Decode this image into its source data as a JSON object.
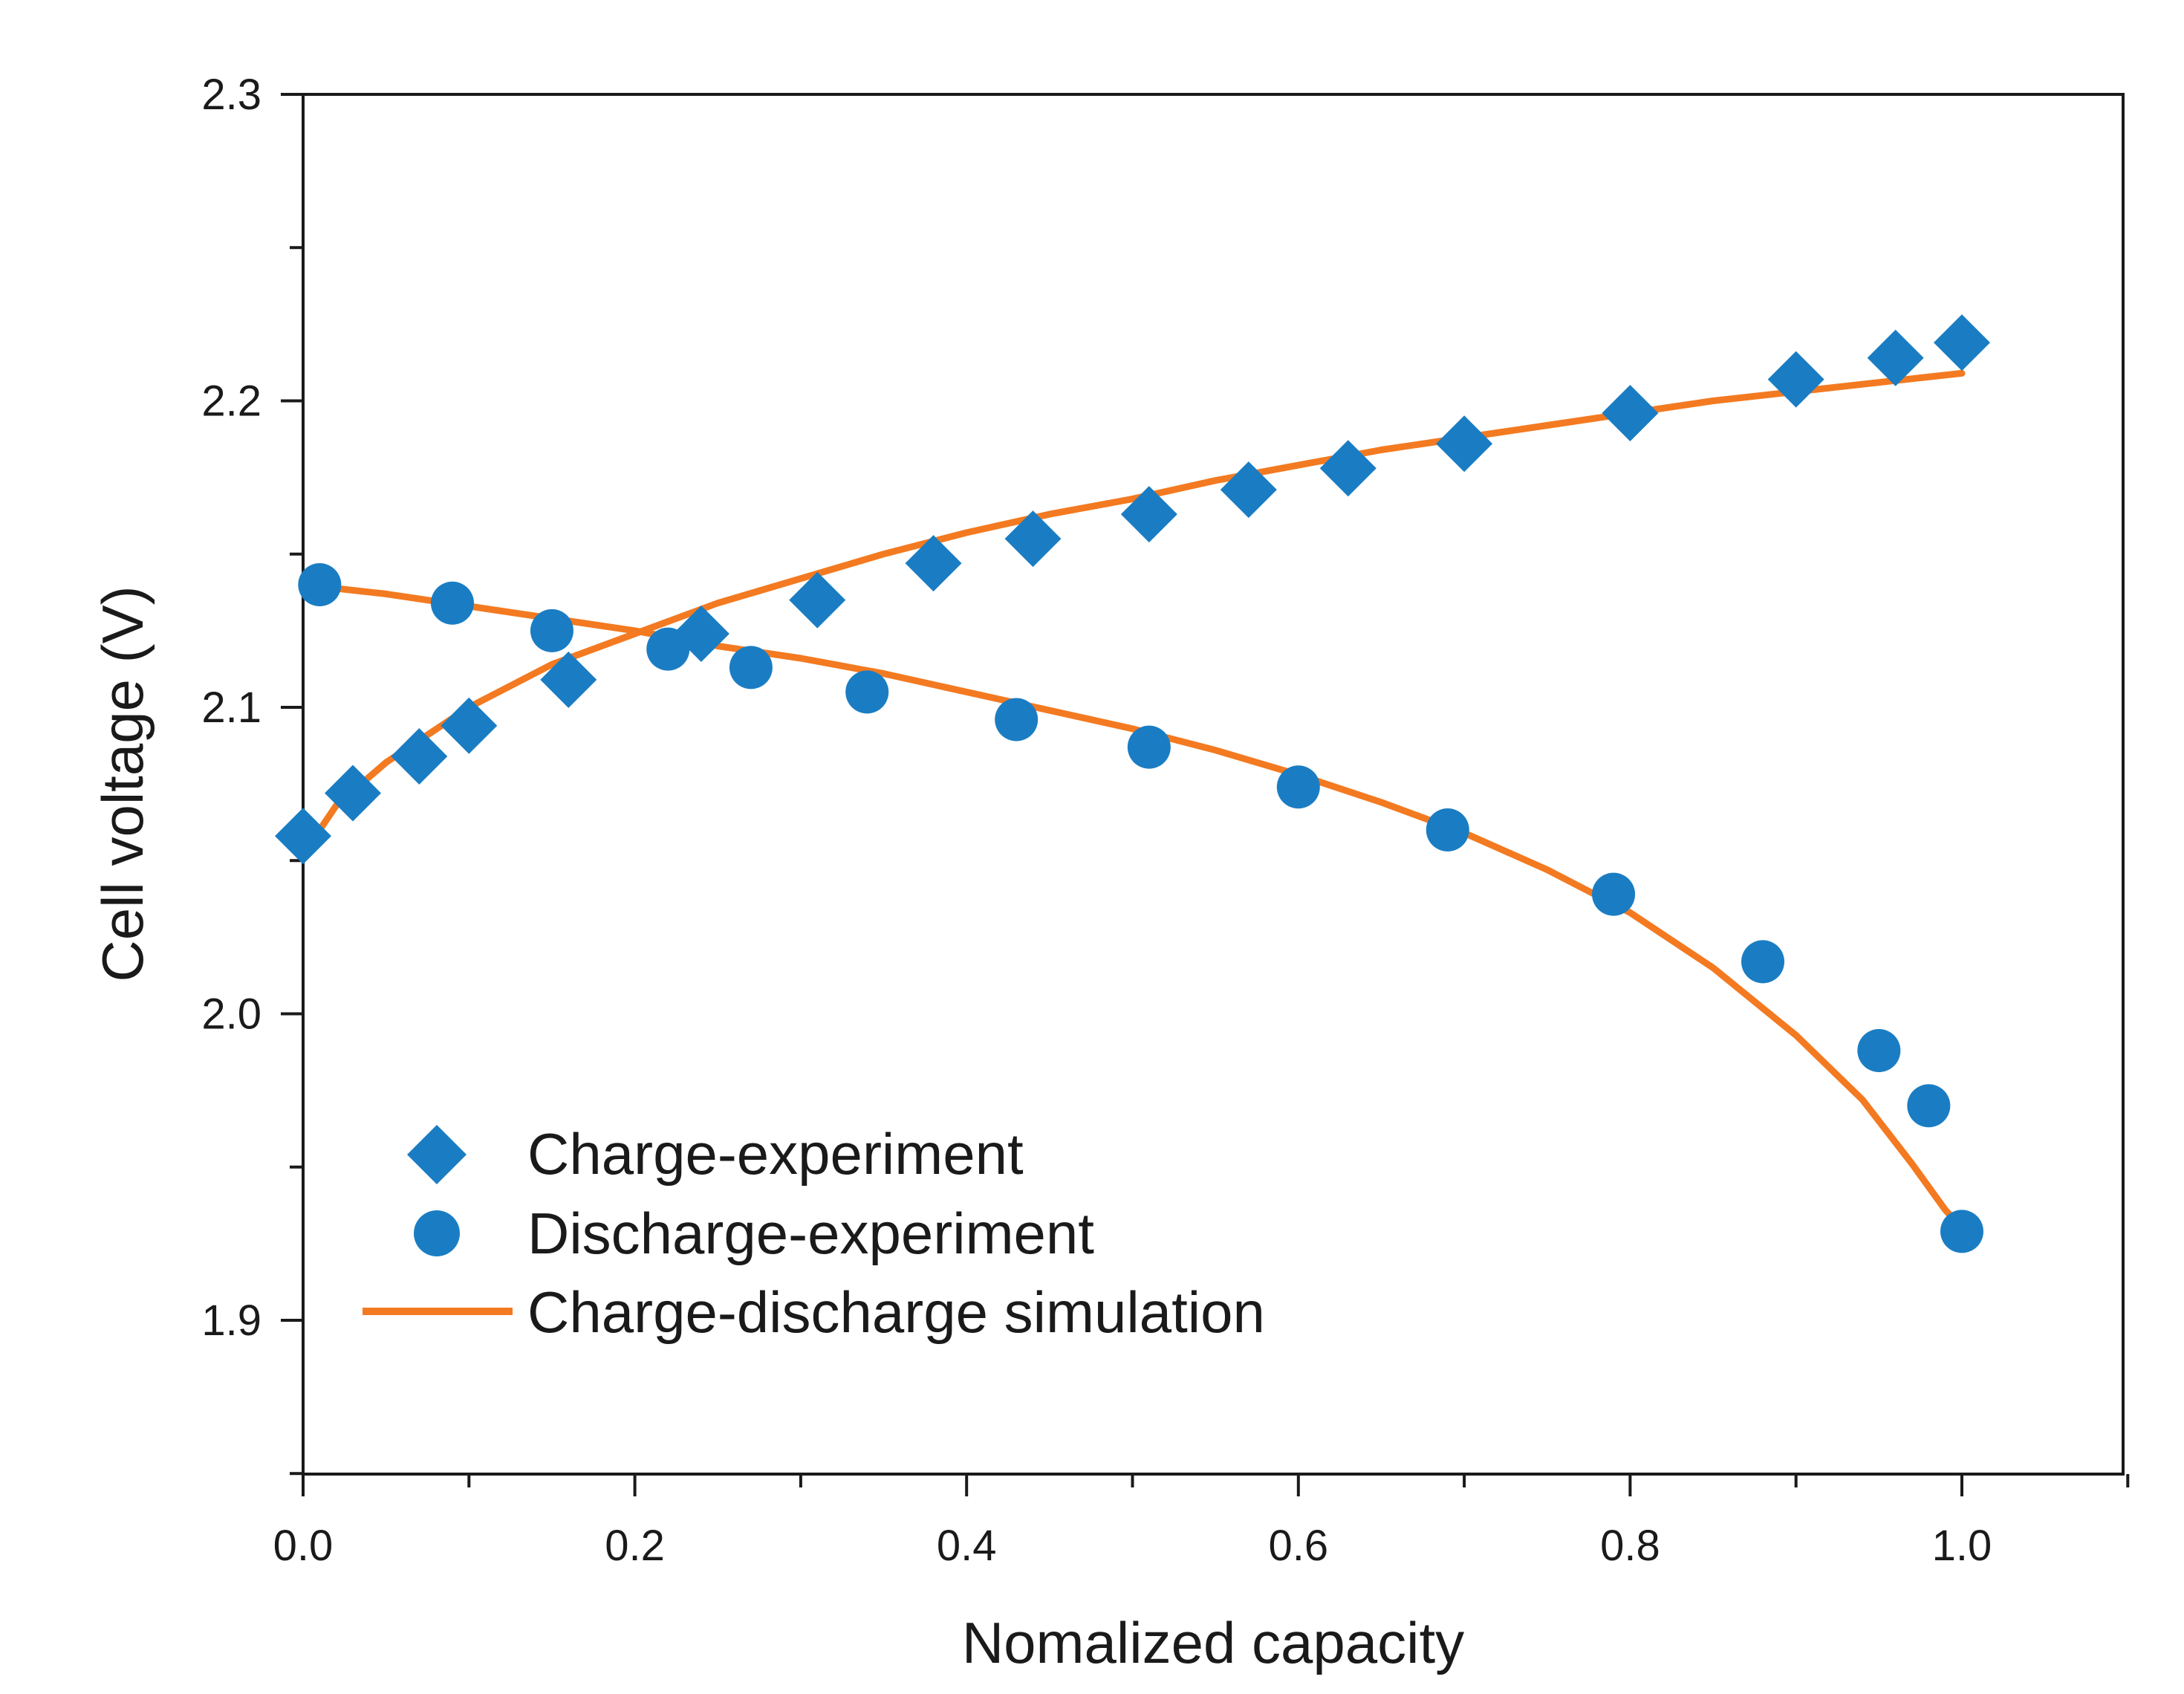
{
  "chart_data": {
    "type": "scatter",
    "title": "",
    "xlabel": "Nomalized capacity",
    "ylabel": "Cell voltage (V)",
    "xlim": [
      0.0,
      1.1
    ],
    "ylim": [
      1.85,
      2.3
    ],
    "x_ticks": [
      0.0,
      0.2,
      0.4,
      0.6,
      0.8,
      1.0
    ],
    "x_tick_labels": [
      "0.0",
      "0.2",
      "0.4",
      "0.6",
      "0.8",
      "1.0"
    ],
    "y_ticks": [
      1.9,
      2.0,
      2.1,
      2.2,
      2.3
    ],
    "y_tick_labels": [
      "1.9",
      "2.0",
      "2.1",
      "2.2",
      "2.3"
    ],
    "grid": false,
    "legend_position": "bottom-left",
    "colors": {
      "marker": "#1a7dc3",
      "line": "#f37a21",
      "axis": "#1a1a1a"
    },
    "series": [
      {
        "name": "Charge-experiment",
        "kind": "scatter",
        "marker": "diamond",
        "x": [
          0.0,
          0.03,
          0.07,
          0.1,
          0.16,
          0.24,
          0.31,
          0.38,
          0.44,
          0.51,
          0.57,
          0.63,
          0.7,
          0.8,
          0.9,
          0.96,
          1.0
        ],
        "y": [
          2.058,
          2.072,
          2.084,
          2.094,
          2.109,
          2.124,
          2.135,
          2.147,
          2.155,
          2.163,
          2.171,
          2.178,
          2.186,
          2.196,
          2.207,
          2.214,
          2.219
        ]
      },
      {
        "name": "Discharge-experiment",
        "kind": "scatter",
        "marker": "circle",
        "x": [
          0.01,
          0.09,
          0.15,
          0.22,
          0.27,
          0.34,
          0.43,
          0.51,
          0.6,
          0.69,
          0.79,
          0.88,
          0.95,
          0.98,
          1.0
        ],
        "y": [
          2.14,
          2.134,
          2.125,
          2.119,
          2.113,
          2.105,
          2.096,
          2.087,
          2.074,
          2.06,
          2.039,
          2.017,
          1.988,
          1.97,
          1.929
        ]
      },
      {
        "name": "Charge-discharge simulation",
        "kind": "line",
        "x": [
          0.0,
          0.02,
          0.05,
          0.1,
          0.15,
          0.2,
          0.25,
          0.3,
          0.35,
          0.4,
          0.45,
          0.5,
          0.55,
          0.6,
          0.65,
          0.7,
          0.75,
          0.8,
          0.85,
          0.9,
          0.95,
          1.0
        ],
        "y": [
          2.052,
          2.068,
          2.082,
          2.1,
          2.114,
          2.124,
          2.134,
          2.142,
          2.15,
          2.157,
          2.163,
          2.168,
          2.174,
          2.179,
          2.184,
          2.188,
          2.192,
          2.196,
          2.2,
          2.203,
          2.206,
          2.209
        ],
        "x2": [
          0.0,
          0.05,
          0.1,
          0.15,
          0.2,
          0.25,
          0.3,
          0.35,
          0.4,
          0.45,
          0.5,
          0.55,
          0.6,
          0.65,
          0.7,
          0.75,
          0.8,
          0.85,
          0.9,
          0.94,
          0.97,
          0.99,
          1.0
        ],
        "y2": [
          2.14,
          2.137,
          2.133,
          2.129,
          2.125,
          2.12,
          2.116,
          2.111,
          2.105,
          2.099,
          2.093,
          2.086,
          2.078,
          2.069,
          2.059,
          2.047,
          2.033,
          2.015,
          1.993,
          1.972,
          1.951,
          1.936,
          1.93
        ]
      }
    ]
  }
}
